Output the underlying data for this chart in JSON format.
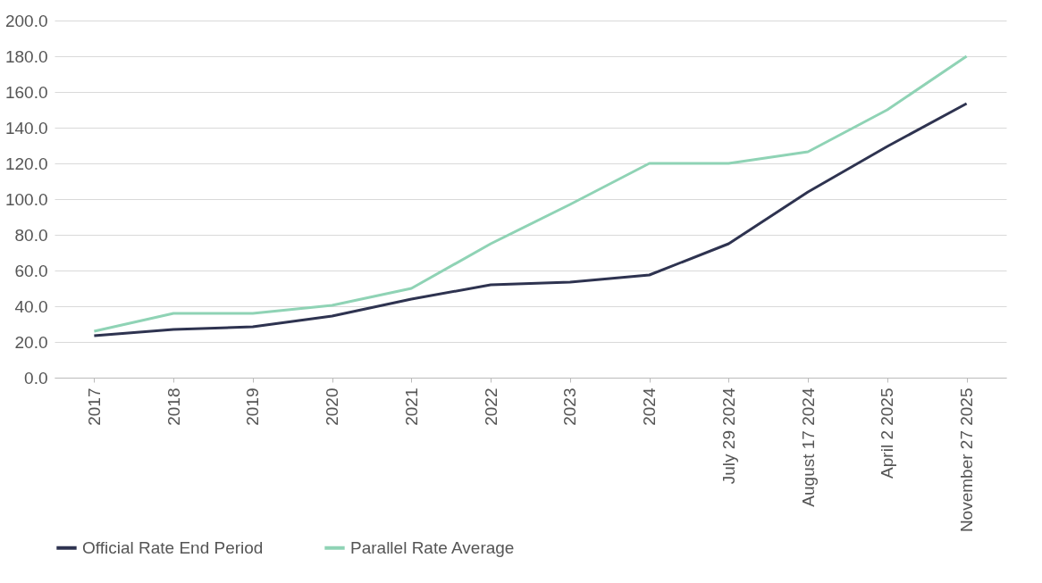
{
  "chart_data": {
    "type": "line",
    "categories": [
      "2017",
      "2018",
      "2019",
      "2020",
      "2021",
      "2022",
      "2023",
      "2024",
      "July 29 2024",
      "August 17 2024",
      "April 2 2025",
      "November 27 2025"
    ],
    "series": [
      {
        "name": "Official Rate End Period",
        "color": "#2e3350",
        "values": [
          23.5,
          27,
          28.5,
          34.5,
          44,
          52,
          53.5,
          57.5,
          75,
          104,
          129.5,
          153.5
        ]
      },
      {
        "name": "Parallel Rate Average",
        "color": "#8fd3b5",
        "values": [
          26,
          36,
          36,
          40.5,
          50,
          75,
          97,
          120,
          120,
          126.5,
          150,
          180
        ]
      }
    ],
    "ylim": [
      0,
      200
    ],
    "yticks": [
      {
        "value": 0,
        "label": "0.0"
      },
      {
        "value": 20,
        "label": "20.0"
      },
      {
        "value": 40,
        "label": "40.0"
      },
      {
        "value": 60,
        "label": "60.0"
      },
      {
        "value": 80,
        "label": "80.0"
      },
      {
        "value": 100,
        "label": "100.0"
      },
      {
        "value": 120,
        "label": "120.0"
      },
      {
        "value": 140,
        "label": "140.0"
      },
      {
        "value": 160,
        "label": "160.0"
      },
      {
        "value": 180,
        "label": "180.0"
      },
      {
        "value": 200,
        "label": "200.0"
      }
    ],
    "grid": "y",
    "legend": "bottom",
    "marker": "none",
    "line_style": "solid"
  }
}
